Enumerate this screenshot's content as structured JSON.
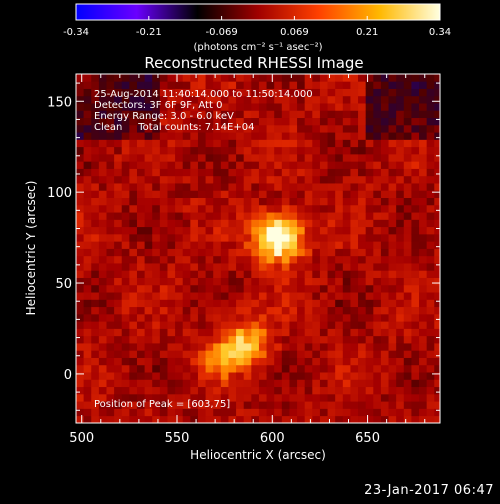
{
  "chart_data": {
    "type": "heatmap",
    "title": "Reconstructed RHESSI Image",
    "xlabel": "Heliocentric X (arcsec)",
    "ylabel": "Heliocentric Y (arcsec)",
    "xlim": [
      497,
      688
    ],
    "ylim": [
      -27,
      165
    ],
    "xticks": [
      500,
      550,
      600,
      650
    ],
    "yticks": [
      0,
      50,
      100,
      150
    ],
    "colorbar": {
      "label": "(photons cm⁻² s⁻¹ asec⁻²)",
      "ticks": [
        "-0.34",
        "-0.21",
        "-0.069",
        "0.069",
        "0.21",
        "0.34"
      ],
      "range": [
        -0.34,
        0.34
      ],
      "colors": [
        "#0000ff",
        "#6a00ff",
        "#000000",
        "#a00000",
        "#ff4000",
        "#ffb800",
        "#ffffe0"
      ]
    },
    "annotations": [
      "25-Aug-2014 11:40:14.000 to 11:50:14.000",
      "Detectors: 3F 6F 9F, Att 0",
      "Energy Range: 3.0 - 6.0 keV",
      "Clean     Total counts: 7.14E+04"
    ],
    "peak": {
      "x": 603,
      "y": 75,
      "label": "Position of Peak = [603,75]"
    },
    "sources": [
      {
        "x": 603,
        "y": 75,
        "sigma": 9,
        "peak": 0.34
      },
      {
        "x": 586,
        "y": 17,
        "sigma": 9,
        "peak": 0.2
      },
      {
        "x": 573,
        "y": 8,
        "sigma": 7,
        "peak": 0.12
      }
    ],
    "background_level": 0.08
  },
  "footer_date": "23-Jan-2017 06:47"
}
